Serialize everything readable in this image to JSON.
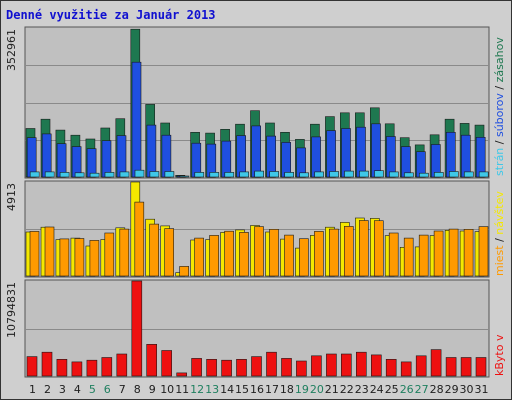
{
  "title": "Denné využitie za Január 2013",
  "colors": {
    "plot_bg": "#c0c0c0",
    "frame_bg": "#cfcfcf",
    "zasahov": "#1e7850",
    "suborov": "#1f4fe0",
    "stran": "#3fc8e8",
    "navstev": "#f5e800",
    "miest": "#ff9a00",
    "kbytov": "#ee1010",
    "weekend_label": "#208060",
    "weekday_label": "#202020"
  },
  "chart_data": [
    {
      "type": "bar",
      "title": "Denné využitie za Január 2013",
      "categories": [
        "1",
        "2",
        "3",
        "4",
        "5",
        "6",
        "7",
        "8",
        "9",
        "10",
        "11",
        "12",
        "13",
        "14",
        "15",
        "16",
        "17",
        "18",
        "19",
        "20",
        "21",
        "22",
        "23",
        "24",
        "25",
        "26",
        "27",
        "28",
        "29",
        "30",
        "31"
      ],
      "weekend_days": [
        "5",
        "6",
        "12",
        "13",
        "19",
        "20",
        "26",
        "27"
      ],
      "ymax_label": "352961",
      "ymax": 352961,
      "series": [
        {
          "name": "zásahov",
          "values": [
            115000,
            137000,
            111000,
            99000,
            90000,
            116000,
            138000,
            350000,
            172000,
            128000,
            4000,
            106000,
            104000,
            113000,
            125000,
            157000,
            128000,
            106000,
            89000,
            125000,
            143000,
            152000,
            152000,
            164000,
            126000,
            93000,
            76000,
            100000,
            137000,
            127000,
            123000
          ]
        },
        {
          "name": "súborov",
          "values": [
            93000,
            102000,
            79000,
            72000,
            67000,
            86000,
            98000,
            272000,
            123000,
            99000,
            2000,
            80000,
            78000,
            85000,
            98000,
            121000,
            97000,
            82000,
            69000,
            95000,
            110000,
            115000,
            118000,
            126000,
            96000,
            72000,
            60000,
            77000,
            106000,
            99000,
            94000
          ]
        },
        {
          "name": "strán",
          "values": [
            12000,
            12000,
            11000,
            10000,
            9000,
            11000,
            12000,
            16000,
            13000,
            13000,
            1000,
            11000,
            11000,
            11000,
            12000,
            14000,
            13000,
            11000,
            10000,
            12000,
            13000,
            14000,
            14000,
            15000,
            12000,
            10000,
            9000,
            11000,
            13000,
            12000,
            12000
          ]
        }
      ],
      "series_labels": [
        "strán",
        "súborov",
        "zásahov"
      ]
    },
    {
      "type": "bar",
      "categories": [
        "1",
        "2",
        "3",
        "4",
        "5",
        "6",
        "7",
        "8",
        "9",
        "10",
        "11",
        "12",
        "13",
        "14",
        "15",
        "16",
        "17",
        "18",
        "19",
        "20",
        "21",
        "22",
        "23",
        "24",
        "25",
        "26",
        "27",
        "28",
        "29",
        "30",
        "31"
      ],
      "ymax_label": "4913",
      "ymax": 4913,
      "series": [
        {
          "name": "návštev",
          "values": [
            2300,
            2550,
            1900,
            1980,
            1570,
            1910,
            2520,
            4913,
            2970,
            2620,
            180,
            1880,
            1900,
            2280,
            2410,
            2640,
            2300,
            1930,
            1460,
            2120,
            2550,
            2800,
            3030,
            3010,
            2110,
            1500,
            1520,
            2110,
            2390,
            2350,
            2320
          ]
        },
        {
          "name": "miest",
          "values": [
            2330,
            2560,
            1940,
            1960,
            1860,
            2250,
            2450,
            3860,
            2710,
            2480,
            500,
            1980,
            2120,
            2340,
            2280,
            2580,
            2440,
            2140,
            1950,
            2330,
            2450,
            2590,
            2900,
            2890,
            2250,
            1980,
            2140,
            2350,
            2450,
            2440,
            2580
          ]
        }
      ],
      "series_labels": [
        "miest",
        "návštev"
      ]
    },
    {
      "type": "bar",
      "categories": [
        "1",
        "2",
        "3",
        "4",
        "5",
        "6",
        "7",
        "8",
        "9",
        "10",
        "11",
        "12",
        "13",
        "14",
        "15",
        "16",
        "17",
        "18",
        "19",
        "20",
        "21",
        "22",
        "23",
        "24",
        "25",
        "26",
        "27",
        "28",
        "29",
        "30",
        "31"
      ],
      "ymax_label": "10794831",
      "ymax": 10794831,
      "series": [
        {
          "name": "kbytov",
          "values": [
            2200000,
            2700000,
            1900000,
            1600000,
            1800000,
            2100000,
            2500000,
            10794831,
            3600000,
            2900000,
            350000,
            2000000,
            1900000,
            1800000,
            1900000,
            2200000,
            2700000,
            2000000,
            1700000,
            2300000,
            2500000,
            2500000,
            2700000,
            2400000,
            1900000,
            1600000,
            2300000,
            3000000,
            2100000,
            2100000,
            2100000
          ]
        }
      ],
      "series_labels": [
        "kByto v"
      ]
    }
  ]
}
